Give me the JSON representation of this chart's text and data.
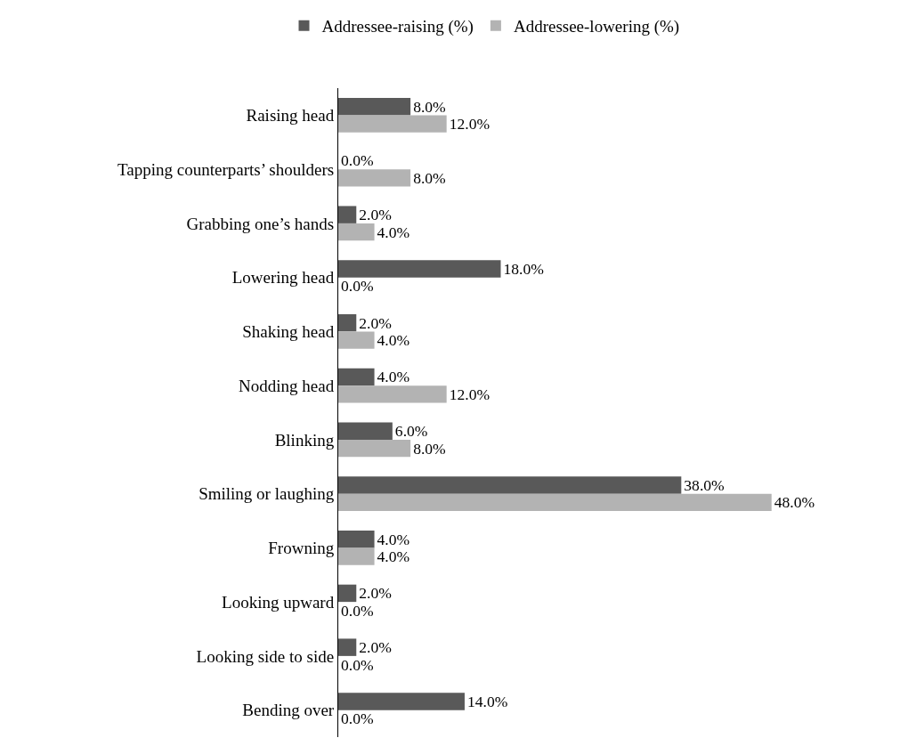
{
  "chart_data": {
    "type": "bar",
    "orientation": "horizontal",
    "legend": "top",
    "categories": [
      "Raising head",
      "Tapping counterparts’ shoulders",
      "Grabbing one’s hands",
      "Lowering head",
      "Shaking head",
      "Nodding head",
      "Blinking",
      "Smiling or laughing",
      "Frowning",
      "Looking upward",
      "Looking side to side",
      "Bending over"
    ],
    "series": [
      {
        "name": "Addressee-raising (%)",
        "color": "#595959",
        "values": [
          8,
          0,
          2,
          18,
          2,
          4,
          6,
          38,
          4,
          2,
          2,
          14
        ],
        "value_labels": [
          "8.0%",
          "0.0%",
          "2.0%",
          "18.0%",
          "2.0%",
          "4.0%",
          "6.0%",
          "38.0%",
          "4.0%",
          "2.0%",
          "2.0%",
          "14.0%"
        ]
      },
      {
        "name": "Addressee-lowering (%)",
        "color": "#b3b3b3",
        "values": [
          12,
          8,
          4,
          0,
          4,
          12,
          8,
          48,
          4,
          0,
          0,
          0
        ],
        "value_labels": [
          "12.0%",
          "8.0%",
          "4.0%",
          "0.0%",
          "4.0%",
          "12.0%",
          "8.0%",
          "48.0%",
          "4.0%",
          "0.0%",
          "0.0%",
          "0.0%"
        ]
      }
    ]
  }
}
